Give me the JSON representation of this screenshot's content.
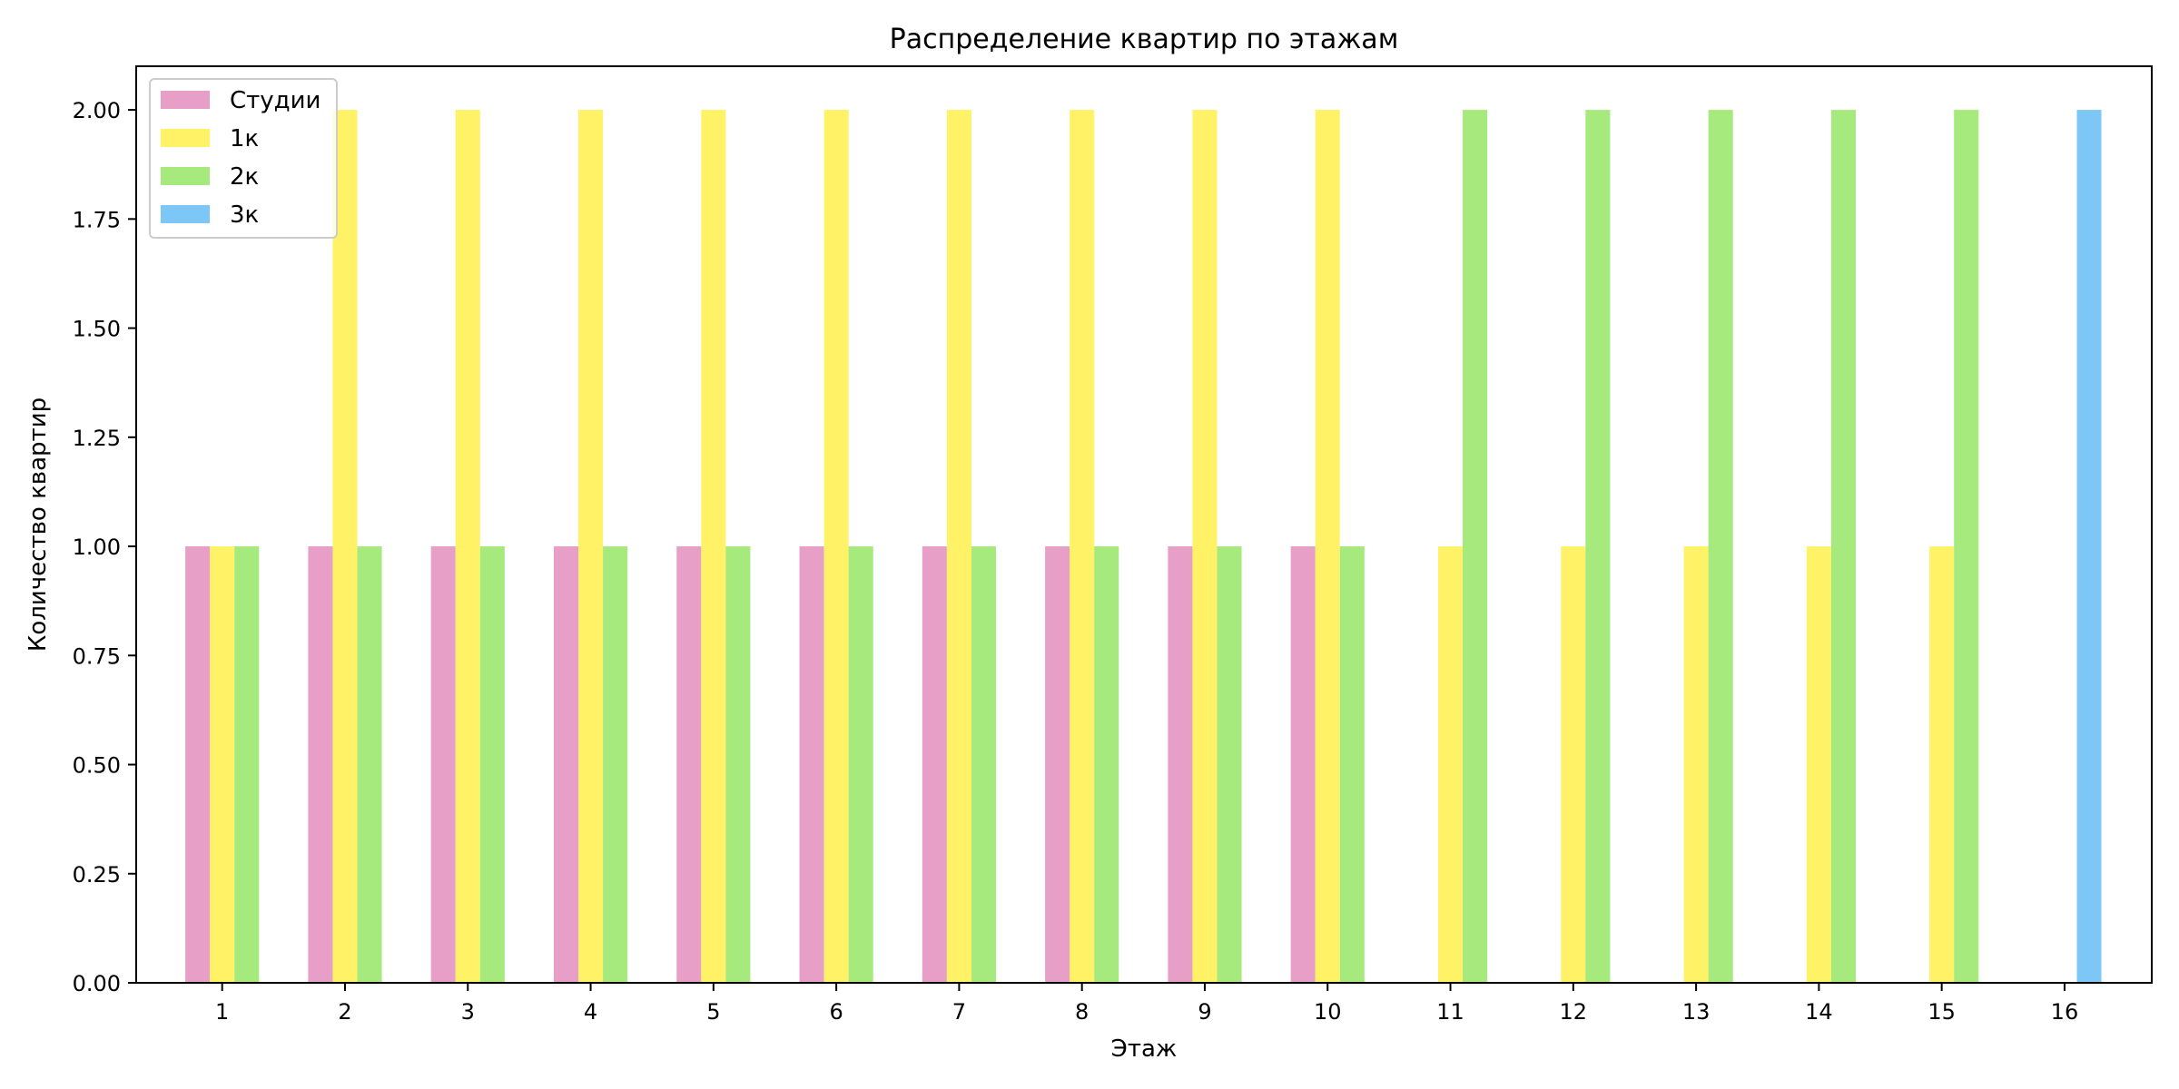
{
  "chart_data": {
    "type": "bar",
    "title": "Распределение квартир по этажам",
    "xlabel": "Этаж",
    "ylabel": "Количество квартир",
    "categories": [
      "1",
      "2",
      "3",
      "4",
      "5",
      "6",
      "7",
      "8",
      "9",
      "10",
      "11",
      "12",
      "13",
      "14",
      "15",
      "16"
    ],
    "y_ticks": [
      "0.00",
      "0.25",
      "0.50",
      "0.75",
      "1.00",
      "1.25",
      "1.50",
      "1.75",
      "2.00"
    ],
    "ylim": [
      0,
      2.1
    ],
    "grid": false,
    "legend_position": "top-left",
    "series": [
      {
        "name": "Студии",
        "color": "#e79ec7",
        "values": [
          1,
          1,
          1,
          1,
          1,
          1,
          1,
          1,
          1,
          1,
          0,
          0,
          0,
          0,
          0,
          0
        ]
      },
      {
        "name": "1к",
        "color": "#fff266",
        "values": [
          1,
          2,
          2,
          2,
          2,
          2,
          2,
          2,
          2,
          2,
          1,
          1,
          1,
          1,
          1,
          0
        ]
      },
      {
        "name": "2к",
        "color": "#a6e97c",
        "values": [
          1,
          1,
          1,
          1,
          1,
          1,
          1,
          1,
          1,
          1,
          2,
          2,
          2,
          2,
          2,
          0
        ]
      },
      {
        "name": "3к",
        "color": "#7cc7f6",
        "values": [
          0,
          0,
          0,
          0,
          0,
          0,
          0,
          0,
          0,
          0,
          0,
          0,
          0,
          0,
          0,
          2
        ]
      }
    ]
  }
}
